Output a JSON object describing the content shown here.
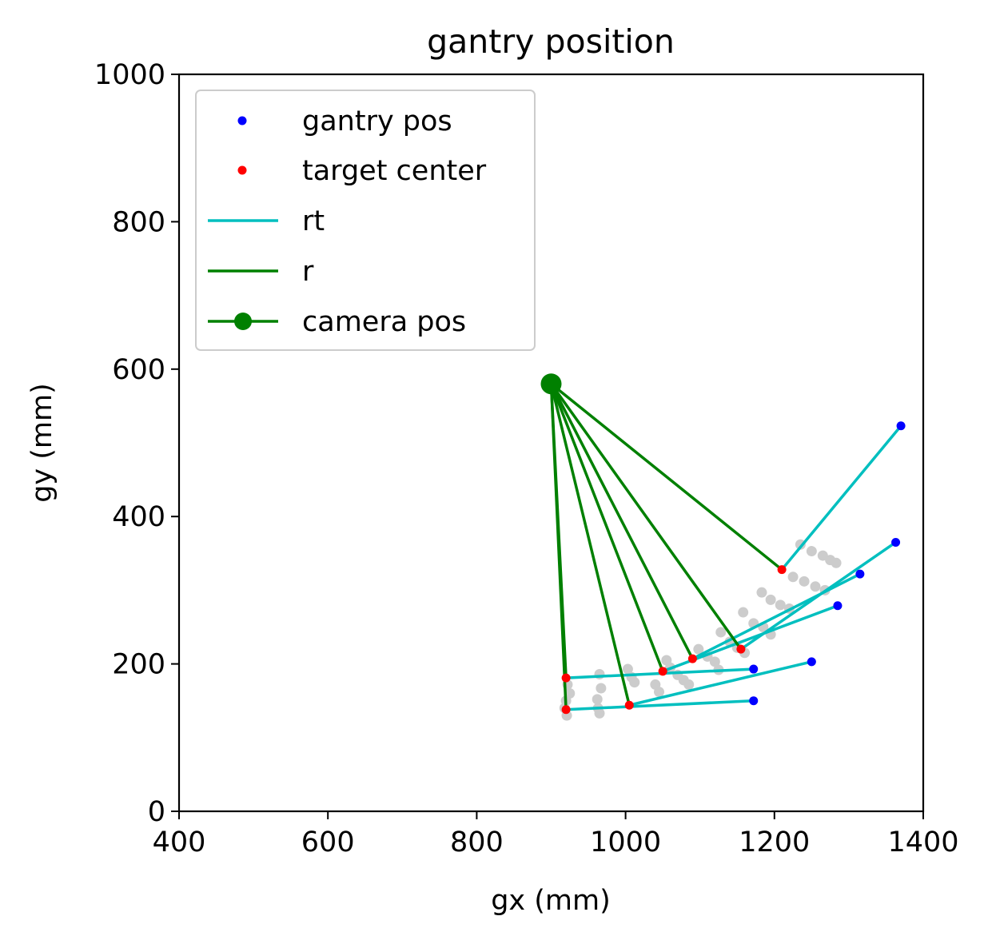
{
  "chart_data": {
    "type": "scatter",
    "title": "gantry position",
    "xlabel": "gx (mm)",
    "ylabel": "gy (mm)",
    "xlim": [
      400,
      1400
    ],
    "ylim": [
      0,
      1000
    ],
    "xticks": [
      "400",
      "600",
      "800",
      "1000",
      "1200",
      "1400"
    ],
    "yticks": [
      "0",
      "200",
      "400",
      "600",
      "800",
      "1000"
    ],
    "grid": false,
    "legend_position": "upper-left",
    "legend": [
      {
        "label": "gantry pos",
        "kind": "dot",
        "color": "#0000ff"
      },
      {
        "label": "target center",
        "kind": "dot",
        "color": "#ff0000"
      },
      {
        "label": "rt",
        "kind": "line",
        "color": "#00bfbf"
      },
      {
        "label": "r",
        "kind": "line",
        "color": "#008000"
      },
      {
        "label": "camera pos",
        "kind": "line-marker",
        "color": "#008000"
      }
    ],
    "camera_pos": [
      900,
      580
    ],
    "gantry_pos": [
      [
        1370,
        523
      ],
      [
        1363,
        365
      ],
      [
        1315,
        322
      ],
      [
        1285,
        279
      ],
      [
        1250,
        203
      ],
      [
        1172,
        193
      ],
      [
        1172,
        150
      ]
    ],
    "target_center": [
      [
        1210,
        328
      ],
      [
        1155,
        220
      ],
      [
        1090,
        207
      ],
      [
        1050,
        190
      ],
      [
        1005,
        144
      ],
      [
        920,
        181
      ],
      [
        920,
        138
      ]
    ],
    "background_points": {
      "color": "#cccccc",
      "points": [
        [
          1235,
          362
        ],
        [
          1250,
          353
        ],
        [
          1265,
          347
        ],
        [
          1275,
          341
        ],
        [
          1283,
          337
        ],
        [
          1225,
          318
        ],
        [
          1240,
          312
        ],
        [
          1255,
          305
        ],
        [
          1268,
          300
        ],
        [
          1183,
          297
        ],
        [
          1195,
          287
        ],
        [
          1208,
          280
        ],
        [
          1220,
          275
        ],
        [
          1158,
          270
        ],
        [
          1172,
          255
        ],
        [
          1185,
          250
        ],
        [
          1195,
          240
        ],
        [
          1128,
          243
        ],
        [
          1140,
          230
        ],
        [
          1150,
          222
        ],
        [
          1160,
          215
        ],
        [
          1098,
          220
        ],
        [
          1110,
          210
        ],
        [
          1120,
          203
        ],
        [
          1125,
          192
        ],
        [
          1055,
          205
        ],
        [
          1060,
          195
        ],
        [
          1070,
          185
        ],
        [
          1078,
          178
        ],
        [
          1085,
          172
        ],
        [
          1003,
          193
        ],
        [
          1008,
          182
        ],
        [
          1012,
          175
        ],
        [
          1040,
          172
        ],
        [
          1045,
          162
        ],
        [
          965,
          186
        ],
        [
          967,
          167
        ],
        [
          962,
          152
        ],
        [
          963,
          140
        ],
        [
          965,
          133
        ],
        [
          922,
          172
        ],
        [
          925,
          160
        ],
        [
          920,
          150
        ],
        [
          918,
          140
        ],
        [
          921,
          130
        ]
      ]
    }
  }
}
